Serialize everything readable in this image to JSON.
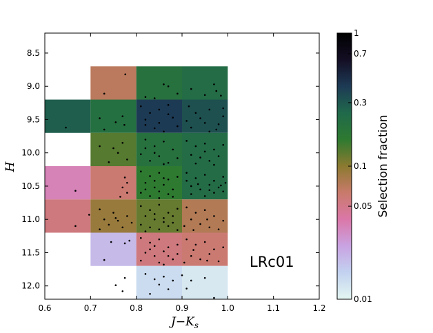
{
  "chart_data": {
    "type": "heatmap",
    "xlabel": "J−K",
    "xlabel_sub": "s",
    "ylabel": "H",
    "xlim": [
      0.6,
      1.2
    ],
    "ylim": [
      12.2,
      8.2
    ],
    "xticks": [
      0.6,
      0.7,
      0.8,
      0.9,
      1.0,
      1.1,
      1.2
    ],
    "xtick_labels": [
      "0.6",
      "0.7",
      "0.8",
      "0.9",
      "1.0",
      "1.1",
      "1.2"
    ],
    "yticks": [
      8.5,
      9.0,
      9.5,
      10.0,
      10.5,
      11.0,
      11.5,
      12.0
    ],
    "ytick_labels": [
      "8.5",
      "9.0",
      "9.5",
      "10.0",
      "10.5",
      "11.0",
      "11.5",
      "12.0"
    ],
    "annotation": "LRc01",
    "colorbar": {
      "label": "Selection fraction",
      "scale": "log",
      "range": [
        0.01,
        1
      ],
      "ticks": [
        0.01,
        0.05,
        0.1,
        0.3,
        0.7,
        1
      ],
      "tick_labels": [
        "0.01",
        "0.05",
        "0.1",
        "0.3",
        "0.7",
        "1"
      ],
      "colormap": [
        "#e4f6f1",
        "#c2d2f0",
        "#c9a3e2",
        "#db77a8",
        "#c97a6b",
        "#8b7a30",
        "#2e7a30",
        "#20694b",
        "#1d3a55",
        "#140e24",
        "#000000"
      ]
    },
    "cells": [
      {
        "x0": 0.7,
        "x1": 0.8,
        "y0": 8.7,
        "y1": 9.2,
        "value": 0.07
      },
      {
        "x0": 0.8,
        "x1": 0.9,
        "y0": 8.7,
        "y1": 9.2,
        "value": 0.2
      },
      {
        "x0": 0.9,
        "x1": 1.0,
        "y0": 8.7,
        "y1": 9.2,
        "value": 0.23
      },
      {
        "x0": 0.6,
        "x1": 0.7,
        "y0": 9.2,
        "y1": 9.7,
        "value": 0.28
      },
      {
        "x0": 0.7,
        "x1": 0.8,
        "y0": 9.2,
        "y1": 9.7,
        "value": 0.21
      },
      {
        "x0": 0.8,
        "x1": 0.9,
        "y0": 9.2,
        "y1": 9.7,
        "value": 0.4
      },
      {
        "x0": 0.9,
        "x1": 1.0,
        "y0": 9.2,
        "y1": 9.7,
        "value": 0.32
      },
      {
        "x0": 0.7,
        "x1": 0.8,
        "y0": 9.7,
        "y1": 10.2,
        "value": 0.13
      },
      {
        "x0": 0.8,
        "x1": 0.9,
        "y0": 9.7,
        "y1": 10.2,
        "value": 0.2
      },
      {
        "x0": 0.9,
        "x1": 1.0,
        "y0": 9.7,
        "y1": 10.2,
        "value": 0.23
      },
      {
        "x0": 0.6,
        "x1": 0.7,
        "y0": 10.2,
        "y1": 10.7,
        "value": 0.035
      },
      {
        "x0": 0.7,
        "x1": 0.8,
        "y0": 10.2,
        "y1": 10.7,
        "value": 0.06
      },
      {
        "x0": 0.8,
        "x1": 0.9,
        "y0": 10.2,
        "y1": 10.7,
        "value": 0.16
      },
      {
        "x0": 0.9,
        "x1": 1.0,
        "y0": 10.2,
        "y1": 10.7,
        "value": 0.23
      },
      {
        "x0": 0.6,
        "x1": 0.7,
        "y0": 10.7,
        "y1": 11.2,
        "value": 0.055
      },
      {
        "x0": 0.7,
        "x1": 0.8,
        "y0": 10.7,
        "y1": 11.2,
        "value": 0.09
      },
      {
        "x0": 0.8,
        "x1": 0.9,
        "y0": 10.7,
        "y1": 11.2,
        "value": 0.12
      },
      {
        "x0": 0.9,
        "x1": 1.0,
        "y0": 10.7,
        "y1": 11.2,
        "value": 0.075
      },
      {
        "x0": 0.7,
        "x1": 0.8,
        "y0": 11.2,
        "y1": 11.7,
        "value": 0.02
      },
      {
        "x0": 0.8,
        "x1": 0.9,
        "y0": 11.2,
        "y1": 11.7,
        "value": 0.055
      },
      {
        "x0": 0.9,
        "x1": 1.0,
        "y0": 11.2,
        "y1": 11.7,
        "value": 0.06
      },
      {
        "x0": 0.8,
        "x1": 0.9,
        "y0": 11.7,
        "y1": 12.2,
        "value": 0.014
      },
      {
        "x0": 0.9,
        "x1": 1.0,
        "y0": 11.7,
        "y1": 12.2,
        "value": 0.012
      }
    ],
    "points": [
      [
        0.776,
        8.82
      ],
      [
        0.73,
        9.11
      ],
      [
        0.86,
        8.97
      ],
      [
        0.87,
        9.0
      ],
      [
        0.92,
        9.04
      ],
      [
        0.975,
        9.07
      ],
      [
        0.97,
        8.97
      ],
      [
        0.84,
        9.18
      ],
      [
        0.89,
        9.11
      ],
      [
        0.82,
        9.16
      ],
      [
        0.95,
        9.13
      ],
      [
        0.985,
        9.14
      ],
      [
        0.646,
        9.62
      ],
      [
        0.72,
        9.48
      ],
      [
        0.755,
        9.54
      ],
      [
        0.77,
        9.45
      ],
      [
        0.774,
        9.58
      ],
      [
        0.73,
        9.65
      ],
      [
        0.81,
        9.3
      ],
      [
        0.83,
        9.4
      ],
      [
        0.85,
        9.35
      ],
      [
        0.87,
        9.28
      ],
      [
        0.82,
        9.5
      ],
      [
        0.85,
        9.55
      ],
      [
        0.88,
        9.47
      ],
      [
        0.84,
        9.63
      ],
      [
        0.86,
        9.68
      ],
      [
        0.89,
        9.6
      ],
      [
        0.82,
        9.58
      ],
      [
        0.87,
        9.42
      ],
      [
        0.915,
        9.3
      ],
      [
        0.93,
        9.4
      ],
      [
        0.96,
        9.35
      ],
      [
        0.99,
        9.45
      ],
      [
        0.95,
        9.55
      ],
      [
        0.92,
        9.62
      ],
      [
        0.975,
        9.65
      ],
      [
        0.99,
        9.33
      ],
      [
        0.94,
        9.48
      ],
      [
        0.98,
        9.57
      ],
      [
        0.91,
        9.52
      ],
      [
        0.96,
        9.68
      ],
      [
        0.72,
        9.9
      ],
      [
        0.75,
        9.93
      ],
      [
        0.77,
        9.85
      ],
      [
        0.76,
        10.0
      ],
      [
        0.74,
        10.14
      ],
      [
        0.78,
        10.1
      ],
      [
        0.82,
        9.8
      ],
      [
        0.84,
        9.9
      ],
      [
        0.86,
        9.83
      ],
      [
        0.88,
        9.95
      ],
      [
        0.81,
        10.02
      ],
      [
        0.85,
        10.05
      ],
      [
        0.83,
        10.12
      ],
      [
        0.87,
        10.15
      ],
      [
        0.89,
        10.08
      ],
      [
        0.82,
        9.93
      ],
      [
        0.86,
        10.17
      ],
      [
        0.84,
        10.0
      ],
      [
        0.91,
        9.82
      ],
      [
        0.93,
        9.9
      ],
      [
        0.95,
        9.86
      ],
      [
        0.97,
        9.95
      ],
      [
        0.99,
        9.88
      ],
      [
        0.92,
        10.03
      ],
      [
        0.94,
        10.07
      ],
      [
        0.96,
        10.12
      ],
      [
        0.98,
        10.05
      ],
      [
        0.93,
        10.16
      ],
      [
        0.97,
        10.18
      ],
      [
        0.95,
        9.98
      ],
      [
        0.667,
        10.57
      ],
      [
        0.775,
        10.37
      ],
      [
        0.78,
        10.45
      ],
      [
        0.77,
        10.52
      ],
      [
        0.78,
        10.6
      ],
      [
        0.765,
        10.66
      ],
      [
        0.81,
        10.28
      ],
      [
        0.83,
        10.35
      ],
      [
        0.85,
        10.3
      ],
      [
        0.87,
        10.4
      ],
      [
        0.82,
        10.45
      ],
      [
        0.84,
        10.52
      ],
      [
        0.86,
        10.48
      ],
      [
        0.88,
        10.55
      ],
      [
        0.81,
        10.6
      ],
      [
        0.83,
        10.65
      ],
      [
        0.85,
        10.58
      ],
      [
        0.87,
        10.62
      ],
      [
        0.89,
        10.36
      ],
      [
        0.82,
        10.55
      ],
      [
        0.86,
        10.38
      ],
      [
        0.84,
        10.42
      ],
      [
        0.88,
        10.66
      ],
      [
        0.85,
        10.68
      ],
      [
        0.91,
        10.3
      ],
      [
        0.93,
        10.38
      ],
      [
        0.95,
        10.33
      ],
      [
        0.97,
        10.42
      ],
      [
        0.99,
        10.36
      ],
      [
        0.92,
        10.5
      ],
      [
        0.94,
        10.55
      ],
      [
        0.96,
        10.48
      ],
      [
        0.98,
        10.52
      ],
      [
        0.995,
        10.45
      ],
      [
        0.92,
        10.62
      ],
      [
        0.95,
        10.65
      ],
      [
        0.97,
        10.6
      ],
      [
        0.99,
        10.58
      ],
      [
        0.935,
        10.47
      ],
      [
        0.96,
        10.56
      ],
      [
        0.91,
        10.42
      ],
      [
        0.985,
        10.49
      ],
      [
        0.667,
        11.1
      ],
      [
        0.697,
        10.93
      ],
      [
        0.72,
        10.85
      ],
      [
        0.75,
        10.9
      ],
      [
        0.73,
        11.0
      ],
      [
        0.76,
        11.02
      ],
      [
        0.74,
        11.08
      ],
      [
        0.78,
        10.95
      ],
      [
        0.77,
        11.12
      ],
      [
        0.72,
        11.15
      ],
      [
        0.79,
        11.05
      ],
      [
        0.755,
        10.98
      ],
      [
        0.81,
        10.8
      ],
      [
        0.83,
        10.86
      ],
      [
        0.85,
        10.78
      ],
      [
        0.87,
        10.9
      ],
      [
        0.89,
        10.84
      ],
      [
        0.82,
        10.95
      ],
      [
        0.84,
        11.0
      ],
      [
        0.86,
        10.98
      ],
      [
        0.88,
        11.05
      ],
      [
        0.81,
        11.08
      ],
      [
        0.83,
        11.12
      ],
      [
        0.85,
        11.15
      ],
      [
        0.87,
        11.1
      ],
      [
        0.89,
        11.16
      ],
      [
        0.82,
        11.18
      ],
      [
        0.86,
        11.04
      ],
      [
        0.84,
        10.92
      ],
      [
        0.88,
        10.95
      ],
      [
        0.91,
        10.82
      ],
      [
        0.93,
        10.9
      ],
      [
        0.95,
        10.86
      ],
      [
        0.92,
        11.0
      ],
      [
        0.94,
        11.07
      ],
      [
        0.97,
        10.95
      ],
      [
        0.99,
        11.02
      ],
      [
        0.96,
        11.12
      ],
      [
        0.98,
        11.15
      ],
      [
        0.925,
        11.16
      ],
      [
        0.955,
        11.0
      ],
      [
        0.905,
        11.1
      ],
      [
        0.745,
        11.34
      ],
      [
        0.775,
        11.36
      ],
      [
        0.785,
        11.32
      ],
      [
        0.73,
        11.61
      ],
      [
        0.81,
        11.28
      ],
      [
        0.83,
        11.35
      ],
      [
        0.85,
        11.3
      ],
      [
        0.87,
        11.42
      ],
      [
        0.89,
        11.38
      ],
      [
        0.82,
        11.5
      ],
      [
        0.84,
        11.55
      ],
      [
        0.86,
        11.48
      ],
      [
        0.88,
        11.6
      ],
      [
        0.81,
        11.62
      ],
      [
        0.85,
        11.65
      ],
      [
        0.87,
        11.55
      ],
      [
        0.83,
        11.45
      ],
      [
        0.89,
        11.52
      ],
      [
        0.86,
        11.68
      ],
      [
        0.84,
        11.4
      ],
      [
        0.91,
        11.3
      ],
      [
        0.93,
        11.38
      ],
      [
        0.95,
        11.34
      ],
      [
        0.97,
        11.45
      ],
      [
        0.99,
        11.42
      ],
      [
        0.92,
        11.55
      ],
      [
        0.94,
        11.6
      ],
      [
        0.96,
        11.52
      ],
      [
        0.98,
        11.63
      ],
      [
        0.925,
        11.46
      ],
      [
        0.955,
        11.62
      ],
      [
        0.905,
        11.65
      ],
      [
        0.755,
        11.99
      ],
      [
        0.775,
        11.88
      ],
      [
        0.77,
        12.08
      ],
      [
        0.82,
        11.82
      ],
      [
        0.84,
        11.9
      ],
      [
        0.86,
        11.86
      ],
      [
        0.85,
        11.98
      ],
      [
        0.87,
        12.05
      ],
      [
        0.88,
        11.92
      ],
      [
        0.9,
        11.84
      ],
      [
        0.92,
        11.92
      ],
      [
        0.91,
        12.04
      ],
      [
        0.97,
        12.18
      ],
      [
        0.83,
        12.12
      ],
      [
        0.95,
        11.88
      ]
    ]
  }
}
